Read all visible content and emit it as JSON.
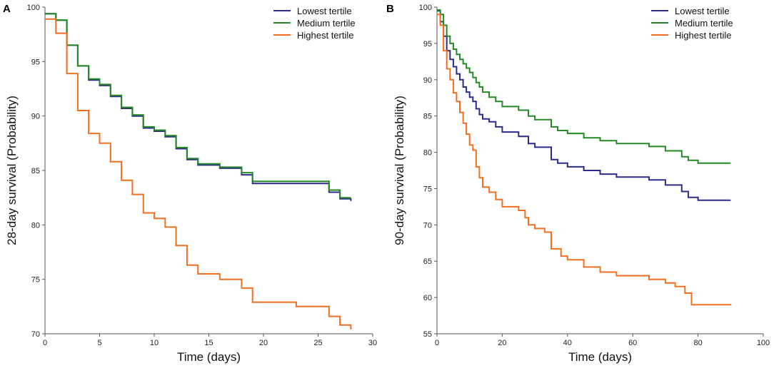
{
  "chart_data": [
    {
      "panel": "A",
      "type": "line",
      "step": true,
      "xlabel": "Time (days)",
      "ylabel": "28-day survival (Probability)",
      "xlim": [
        0,
        30
      ],
      "ylim": [
        70,
        100
      ],
      "xticks": [
        0,
        5,
        10,
        15,
        20,
        25,
        30
      ],
      "yticks": [
        70,
        75,
        80,
        85,
        90,
        95,
        100
      ],
      "legend_position": "top-right",
      "series": [
        {
          "name": "Lowest tertile",
          "color": "#2b2b8c",
          "x": [
            0,
            1,
            2,
            3,
            4,
            5,
            6,
            7,
            8,
            9,
            10,
            11,
            12,
            13,
            14,
            16,
            18,
            19,
            26,
            27,
            28
          ],
          "y": [
            99.4,
            98.8,
            96.5,
            94.6,
            93.3,
            92.8,
            91.8,
            90.7,
            90.0,
            88.9,
            88.6,
            88.1,
            87.0,
            86.0,
            85.5,
            85.2,
            84.6,
            83.8,
            83.0,
            82.4,
            82.2
          ]
        },
        {
          "name": "Medium tertile",
          "color": "#238a23",
          "x": [
            0,
            1,
            2,
            3,
            4,
            5,
            6,
            7,
            8,
            9,
            10,
            11,
            12,
            13,
            14,
            16,
            18,
            19,
            26,
            27,
            28
          ],
          "y": [
            99.4,
            98.8,
            96.5,
            94.6,
            93.4,
            92.9,
            91.9,
            90.8,
            90.1,
            89.0,
            88.7,
            88.2,
            87.1,
            86.1,
            85.6,
            85.3,
            84.8,
            84.0,
            83.2,
            82.5,
            82.5
          ]
        },
        {
          "name": "Highest tertile",
          "color": "#f07020",
          "x": [
            0,
            1,
            2,
            3,
            4,
            5,
            6,
            7,
            8,
            9,
            10,
            11,
            12,
            13,
            14,
            16,
            18,
            19,
            23,
            26,
            27,
            28
          ],
          "y": [
            98.9,
            97.6,
            93.9,
            90.5,
            88.4,
            87.5,
            85.8,
            84.1,
            82.8,
            81.1,
            80.6,
            79.8,
            78.1,
            76.3,
            75.5,
            75.0,
            74.2,
            72.9,
            72.5,
            71.6,
            70.8,
            70.4
          ]
        }
      ]
    },
    {
      "panel": "B",
      "type": "line",
      "step": true,
      "xlabel": "Time (days)",
      "ylabel": "90-day survival (Probability)",
      "xlim": [
        0,
        100
      ],
      "ylim": [
        55,
        100
      ],
      "xticks": [
        0,
        20,
        40,
        60,
        80,
        100
      ],
      "yticks": [
        55,
        60,
        65,
        70,
        75,
        80,
        85,
        90,
        95,
        100
      ],
      "legend_position": "top-right",
      "series": [
        {
          "name": "Lowest tertile",
          "color": "#2b2b8c",
          "x": [
            0,
            1,
            2,
            3,
            4,
            5,
            6,
            7,
            8,
            9,
            10,
            11,
            12,
            13,
            14,
            16,
            18,
            20,
            25,
            28,
            30,
            35,
            37,
            40,
            45,
            50,
            55,
            65,
            70,
            75,
            77,
            80,
            90
          ],
          "y": [
            99.5,
            98,
            96,
            94,
            92.8,
            91.8,
            90.8,
            90,
            89,
            88.3,
            87.6,
            87,
            86,
            85.2,
            84.6,
            84.2,
            83.5,
            82.8,
            82.2,
            81.2,
            80.7,
            79,
            78.5,
            78,
            77.5,
            77,
            76.6,
            76.2,
            75.5,
            74.6,
            73.8,
            73.4,
            73.4
          ]
        },
        {
          "name": "Medium tertile",
          "color": "#238a23",
          "x": [
            0,
            1,
            2,
            3,
            4,
            5,
            6,
            7,
            8,
            9,
            10,
            11,
            12,
            13,
            14,
            16,
            18,
            20,
            25,
            28,
            30,
            35,
            37,
            40,
            45,
            50,
            55,
            65,
            70,
            75,
            77,
            80,
            90
          ],
          "y": [
            99.6,
            99,
            97.5,
            96,
            95,
            94.2,
            93.5,
            92.8,
            92.2,
            91.6,
            91,
            90.3,
            89.6,
            89,
            88.3,
            87.6,
            87,
            86.3,
            85.8,
            85,
            84.5,
            83.5,
            83,
            82.6,
            82,
            81.6,
            81.2,
            80.8,
            80.2,
            79.4,
            78.9,
            78.5,
            78.5
          ]
        },
        {
          "name": "Highest tertile",
          "color": "#f07020",
          "x": [
            0,
            1,
            2,
            3,
            4,
            5,
            6,
            7,
            8,
            9,
            10,
            11,
            12,
            13,
            14,
            16,
            18,
            20,
            25,
            27,
            28,
            30,
            33,
            35,
            38,
            40,
            45,
            50,
            55,
            65,
            70,
            73,
            76,
            78,
            90
          ],
          "y": [
            99,
            97.5,
            94,
            91.5,
            90,
            88.2,
            87,
            85.5,
            84,
            82.5,
            81,
            80.3,
            78,
            76.5,
            75.2,
            74.5,
            73.5,
            72.5,
            72,
            71,
            70,
            69.5,
            69,
            66.7,
            65.7,
            65.2,
            64.2,
            63.5,
            63,
            62.5,
            62,
            61.5,
            60.6,
            59,
            58.9
          ]
        }
      ]
    }
  ]
}
